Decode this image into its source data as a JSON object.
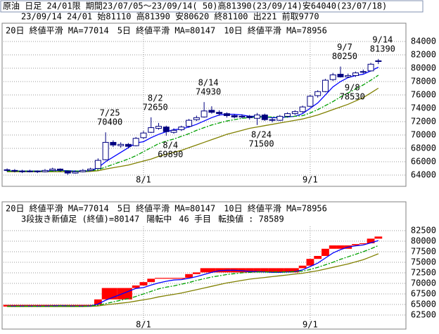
{
  "header": {
    "line1": "原油 日足 24/01限 期間23/07/05～23/09/14( 50)高81390(23/09/14)安64040(23/07/18)",
    "line2": "23/09/14 24/01 始81110 高81390 安80620 終81100 出221 前取9770"
  },
  "chart_data": [
    {
      "type": "candlestick",
      "categories": [
        null,
        null,
        null,
        null,
        null,
        null,
        null,
        null,
        null,
        null,
        null,
        null,
        null,
        null,
        null,
        null,
        null,
        null,
        "8/1",
        null,
        null,
        null,
        null,
        null,
        null,
        null,
        null,
        null,
        null,
        null,
        null,
        null,
        null,
        null,
        null,
        null,
        null,
        null,
        null,
        null,
        "9/1",
        null,
        null,
        null,
        null,
        null,
        null,
        null,
        null,
        null
      ],
      "ohlc": [
        [
          64800,
          65000,
          64500,
          64700
        ],
        [
          64700,
          64900,
          64400,
          64600
        ],
        [
          64600,
          64800,
          64300,
          64500
        ],
        [
          64500,
          64800,
          64400,
          64600
        ],
        [
          64600,
          64700,
          64300,
          64500
        ],
        [
          64500,
          64900,
          64400,
          64700
        ],
        [
          64700,
          65100,
          64600,
          64900
        ],
        [
          64900,
          65000,
          64500,
          64700
        ],
        [
          64600,
          64700,
          64040,
          64300
        ],
        [
          64300,
          64700,
          64200,
          64500
        ],
        [
          64500,
          64900,
          64400,
          64700
        ],
        [
          64700,
          65100,
          64600,
          64900
        ],
        [
          65000,
          66500,
          64900,
          66200
        ],
        [
          66300,
          70400,
          66200,
          68900
        ],
        [
          68900,
          69200,
          68200,
          68500
        ],
        [
          68400,
          68900,
          68100,
          68600
        ],
        [
          68600,
          68800,
          68000,
          68300
        ],
        [
          68400,
          69700,
          68300,
          69500
        ],
        [
          69600,
          70600,
          69400,
          70300
        ],
        [
          70400,
          72650,
          70300,
          71100
        ],
        [
          71000,
          71800,
          70800,
          71300
        ],
        [
          71200,
          71400,
          69890,
          70500
        ],
        [
          70400,
          71000,
          70200,
          70700
        ],
        [
          70800,
          71400,
          70600,
          71200
        ],
        [
          71300,
          72400,
          71100,
          72200
        ],
        [
          72300,
          72900,
          72100,
          72600
        ],
        [
          72700,
          74930,
          72600,
          73600
        ],
        [
          73700,
          74300,
          73200,
          73400
        ],
        [
          73400,
          73700,
          72900,
          73200
        ],
        [
          73200,
          73400,
          72600,
          72900
        ],
        [
          72900,
          73100,
          72500,
          72700
        ],
        [
          72700,
          73100,
          72500,
          72800
        ],
        [
          72800,
          73000,
          72300,
          72600
        ],
        [
          72500,
          73300,
          71500,
          73000
        ],
        [
          73000,
          73200,
          72100,
          72300
        ],
        [
          72300,
          72600,
          71900,
          72200
        ],
        [
          72200,
          73000,
          72100,
          72800
        ],
        [
          72800,
          73400,
          72600,
          73200
        ],
        [
          73200,
          73700,
          73000,
          73500
        ],
        [
          73500,
          74400,
          73300,
          74200
        ],
        [
          74300,
          76000,
          74200,
          75800
        ],
        [
          75900,
          76700,
          75600,
          76500
        ],
        [
          76500,
          78400,
          76400,
          78200
        ],
        [
          78300,
          79300,
          78100,
          79000
        ],
        [
          79100,
          80250,
          78600,
          78700
        ],
        [
          78700,
          79200,
          78530,
          78900
        ],
        [
          78900,
          79500,
          78700,
          79300
        ],
        [
          79400,
          79800,
          79200,
          79500
        ],
        [
          79600,
          80800,
          79500,
          80600
        ],
        [
          81110,
          81390,
          80620,
          81100
        ]
      ],
      "up_color": "#ffffff",
      "down_color": "#000080",
      "outline_color": "#000080",
      "series": [
        {
          "name": "20日 終値平滑 MA=77014",
          "color": "#808000",
          "values": [
            64500,
            64500,
            64500,
            64500,
            64500,
            64500,
            64500,
            64500,
            64500,
            64500,
            64500,
            64550,
            64650,
            64900,
            65100,
            65300,
            65500,
            65800,
            66100,
            66400,
            66800,
            67100,
            67400,
            67700,
            68100,
            68500,
            68900,
            69300,
            69700,
            70100,
            70400,
            70700,
            71000,
            71200,
            71400,
            71600,
            71800,
            72000,
            72200,
            72400,
            72700,
            73000,
            73400,
            73800,
            74200,
            74600,
            75100,
            75600,
            76300,
            77014
          ]
        },
        {
          "name": "5日 終値平滑 MA=80147",
          "color": "#0000ff",
          "values": [
            64600,
            64600,
            64600,
            64600,
            64600,
            64600,
            64650,
            64700,
            64650,
            64600,
            64600,
            64650,
            65100,
            66000,
            66700,
            67400,
            68100,
            68800,
            69000,
            69600,
            70100,
            70500,
            70800,
            70900,
            71200,
            71600,
            72100,
            72600,
            73000,
            73100,
            73100,
            73000,
            72800,
            72800,
            72700,
            72600,
            72600,
            72700,
            72800,
            73200,
            74000,
            74800,
            76000,
            77200,
            78000,
            78600,
            78900,
            79100,
            79600,
            80147
          ]
        },
        {
          "name": "10日 終値平滑 MA=78956",
          "color": "#00a000",
          "dashed": true,
          "values": [
            64600,
            64600,
            64600,
            64600,
            64600,
            64600,
            64600,
            64650,
            64650,
            64600,
            64600,
            64650,
            64800,
            65200,
            65600,
            66000,
            66400,
            66900,
            67500,
            68100,
            68700,
            69100,
            69400,
            69800,
            70200,
            70700,
            71100,
            71500,
            71800,
            72100,
            72300,
            72500,
            72600,
            72700,
            72700,
            72700,
            72700,
            72700,
            72800,
            72900,
            73300,
            73800,
            74400,
            75000,
            75700,
            76300,
            76900,
            77500,
            78200,
            78956
          ]
        }
      ],
      "annotations": [
        {
          "date": "7/25",
          "value": 70400
        },
        {
          "date": "8/2",
          "value": 72650
        },
        {
          "date": "8/4",
          "value": 69890
        },
        {
          "date": "8/14",
          "value": 74930
        },
        {
          "date": "8/24",
          "value": 71500
        },
        {
          "date": "9/7",
          "value": 80250
        },
        {
          "date": "9/8",
          "value": 78530
        },
        {
          "date": "9/14",
          "value": 81390
        }
      ],
      "high_label_color": "#e00000",
      "low_label_color": "#00a000",
      "ylim": [
        62630,
        84950
      ],
      "yticks": [
        64000,
        66000,
        68000,
        70000,
        72000,
        74000,
        76000,
        78000,
        80000,
        82000,
        84000
      ],
      "grid": true
    },
    {
      "type": "three-line-break",
      "labels": [
        {
          "text": "3段抜き新値足 (終値)=80147",
          "color": "#000000"
        },
        {
          "text": "陽転中",
          "color": "#e00000"
        },
        {
          "text": "46 手目",
          "color": "#e00000"
        },
        {
          "text": "転換値 : 78589",
          "color": "#e000e0"
        }
      ],
      "color": "#ff0000",
      "bricks": [
        [
          64500,
          64900
        ],
        [
          64500,
          64900
        ],
        [
          64500,
          64900
        ],
        [
          64500,
          64900
        ],
        [
          64500,
          64900
        ],
        [
          64500,
          64900
        ],
        [
          64500,
          64900
        ],
        [
          64500,
          64900
        ],
        [
          64500,
          64900
        ],
        [
          64500,
          64900
        ],
        [
          64500,
          64900
        ],
        [
          64500,
          64900
        ],
        [
          64900,
          66200
        ],
        [
          66200,
          68900
        ],
        [
          66200,
          68900
        ],
        [
          66200,
          68900
        ],
        [
          66200,
          68900
        ],
        [
          68900,
          69500
        ],
        [
          69500,
          70300
        ],
        [
          70300,
          71100
        ],
        [
          71100,
          71300
        ],
        [
          71100,
          71300
        ],
        [
          71100,
          71300
        ],
        [
          71100,
          71300
        ],
        [
          71300,
          72200
        ],
        [
          72200,
          72600
        ],
        [
          72600,
          73600
        ],
        [
          72600,
          73600
        ],
        [
          72600,
          73600
        ],
        [
          72600,
          73600
        ],
        [
          72600,
          73600
        ],
        [
          72600,
          73600
        ],
        [
          72600,
          73600
        ],
        [
          72600,
          73600
        ],
        [
          72600,
          73600
        ],
        [
          72600,
          73600
        ],
        [
          72600,
          73600
        ],
        [
          72600,
          73600
        ],
        [
          72600,
          73600
        ],
        [
          73600,
          74200
        ],
        [
          74200,
          75800
        ],
        [
          75800,
          76500
        ],
        [
          76500,
          78200
        ],
        [
          78200,
          79000
        ],
        [
          78200,
          79000
        ],
        [
          78200,
          79000
        ],
        [
          79000,
          79300
        ],
        [
          79300,
          79500
        ],
        [
          79500,
          80600
        ],
        [
          80600,
          81100
        ]
      ],
      "ylim": [
        60830,
        83500
      ],
      "yticks": [
        62500,
        65000,
        67500,
        70000,
        72500,
        75000,
        77500,
        80000,
        82500
      ],
      "grid": true
    }
  ]
}
